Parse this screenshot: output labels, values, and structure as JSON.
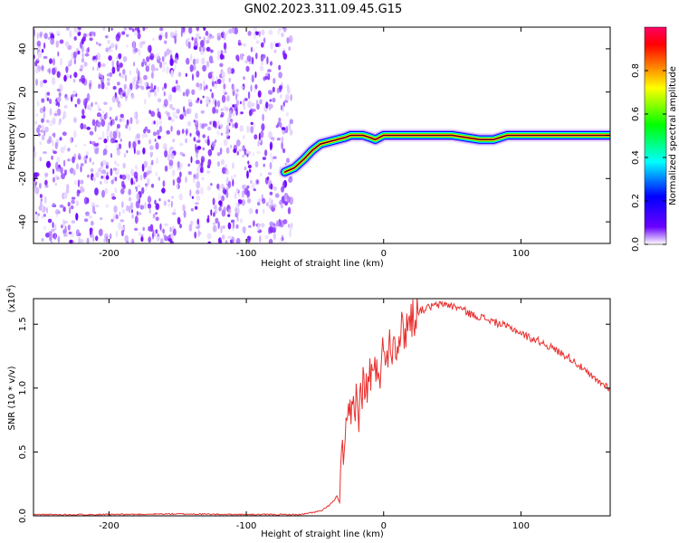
{
  "title": "GN02.2023.311.09.45.G15",
  "chart_data": [
    {
      "type": "heatmap",
      "panel": "top",
      "xlabel": "Height of straight line (km)",
      "ylabel": "Frequency (Hz)",
      "xlim": [
        -255,
        165
      ],
      "ylim": [
        -50,
        50
      ],
      "x_ticks": [
        -200,
        -100,
        0,
        100
      ],
      "x_tick_labels": [
        "-200",
        "-100",
        "0",
        "100"
      ],
      "y_ticks": [
        -40,
        -20,
        0,
        20,
        40
      ],
      "y_tick_labels": [
        "-40",
        "-20",
        "0",
        "20",
        "40"
      ],
      "noise_region_x": [
        -255,
        -67
      ],
      "signal_trace": {
        "x": [
          -72,
          -65,
          -58,
          -52,
          -46,
          -40,
          -34,
          -28,
          -24,
          -20,
          -15,
          -10,
          -6,
          0,
          10,
          30,
          50,
          60,
          70,
          80,
          90,
          110,
          130,
          150,
          165
        ],
        "frequency": [
          -17,
          -15,
          -11,
          -7,
          -4,
          -3,
          -2,
          -1,
          0,
          0,
          0,
          -1,
          -2,
          0,
          0,
          0,
          0,
          -1,
          -2,
          -2,
          0,
          0,
          0,
          0,
          0
        ]
      },
      "colorbar": {
        "label": "Normalized spectral amplitude",
        "range": [
          0,
          1
        ],
        "ticks": [
          0.0,
          0.2,
          0.4,
          0.6,
          0.8
        ],
        "tick_labels": [
          "0.0",
          "0.2",
          "0.4",
          "0.6",
          "0.8"
        ],
        "colors": [
          "#ffffff",
          "#6a00ff",
          "#0000ff",
          "#00ffff",
          "#00ff00",
          "#ffff00",
          "#ff8000",
          "#ff0000",
          "#ff0066"
        ]
      }
    },
    {
      "type": "line",
      "panel": "bottom",
      "xlabel": "Height of straight line (km)",
      "ylabel": "SNR (10 * v/v)",
      "y_scale_label": "(x10^4)",
      "xlim": [
        -255,
        165
      ],
      "ylim": [
        0.0,
        1.7
      ],
      "x_ticks": [
        -200,
        -100,
        0,
        100
      ],
      "x_tick_labels": [
        "-200",
        "-100",
        "0",
        "100"
      ],
      "y_ticks": [
        0.0,
        0.5,
        1.0,
        1.5
      ],
      "y_tick_labels": [
        "0.0",
        "0.5",
        "1.0",
        "1.5"
      ],
      "series": [
        {
          "color": "#e8302e",
          "x": [
            -255,
            -200,
            -150,
            -100,
            -60,
            -45,
            -40,
            -36,
            -34,
            -32,
            -30,
            -28,
            -25,
            -22,
            -20,
            -18,
            -15,
            -12,
            -10,
            -7,
            -5,
            -2,
            0,
            5,
            10,
            15,
            20,
            25,
            30,
            35,
            40,
            45,
            50,
            55,
            60,
            65,
            70,
            75,
            80,
            85,
            90,
            95,
            100,
            105,
            110,
            115,
            120,
            125,
            130,
            135,
            140,
            145,
            150,
            155,
            160,
            165
          ],
          "values": [
            0.01,
            0.01,
            0.015,
            0.01,
            0.01,
            0.04,
            0.08,
            0.12,
            0.16,
            0.1,
            0.5,
            0.55,
            0.75,
            0.85,
            0.95,
            0.8,
            1.05,
            0.95,
            1.15,
            1.05,
            1.2,
            1.15,
            1.3,
            1.35,
            1.4,
            1.45,
            1.55,
            1.6,
            1.62,
            1.64,
            1.65,
            1.66,
            1.64,
            1.63,
            1.6,
            1.57,
            1.56,
            1.54,
            1.52,
            1.5,
            1.48,
            1.46,
            1.43,
            1.4,
            1.38,
            1.36,
            1.33,
            1.3,
            1.27,
            1.24,
            1.2,
            1.15,
            1.1,
            1.06,
            1.03,
            1.0
          ]
        }
      ]
    }
  ]
}
